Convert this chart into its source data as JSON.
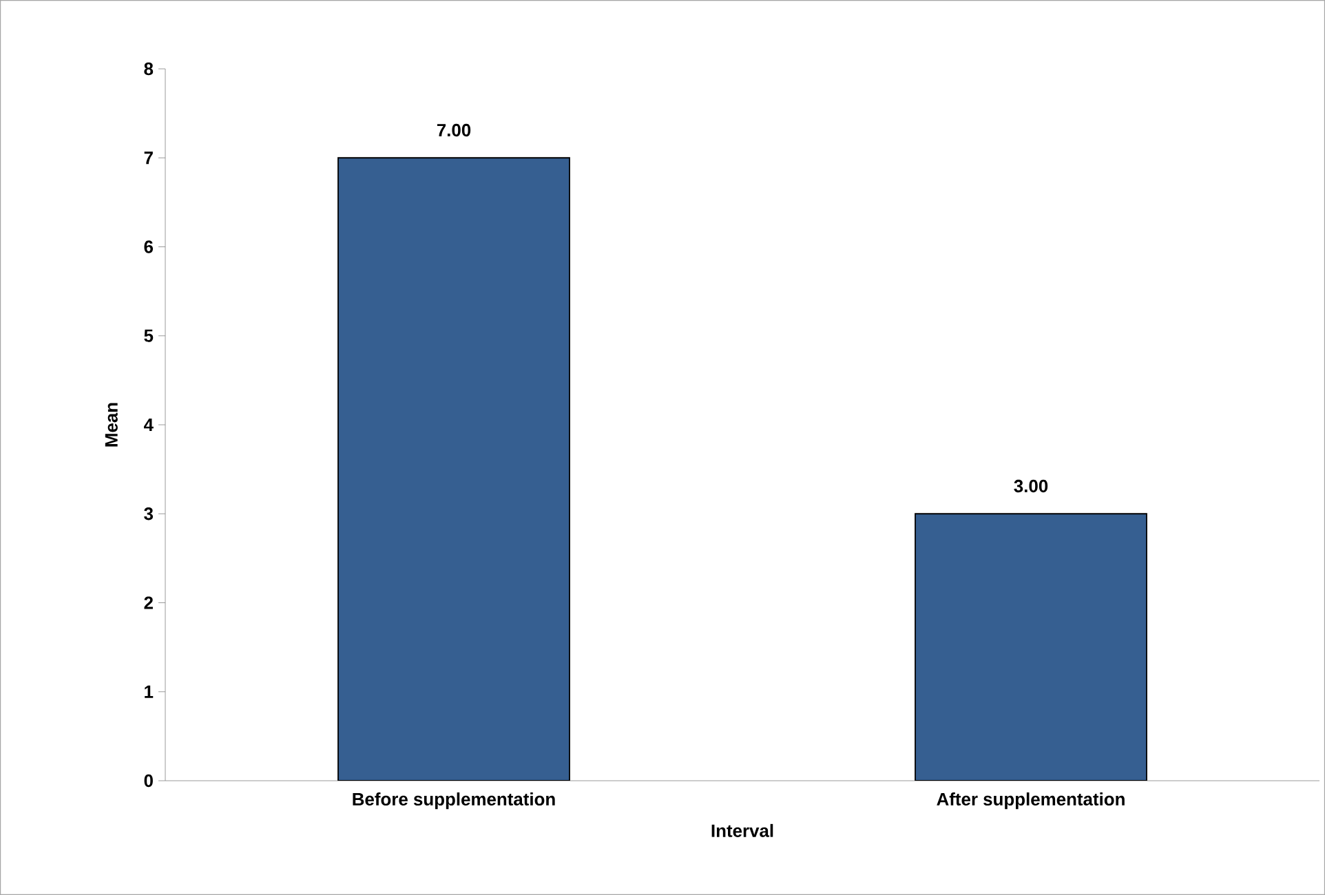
{
  "chart_data": {
    "type": "bar",
    "xlabel": "Interval",
    "ylabel": "Mean",
    "categories": [
      "Before supplementation",
      "After supplementation"
    ],
    "values": [
      7,
      3
    ],
    "value_labels": [
      "7.00",
      "3.00"
    ],
    "color": "#365f91",
    "ylim": [
      0,
      8
    ],
    "yticks": [
      0,
      1,
      2,
      3,
      4,
      5,
      6,
      7,
      8
    ],
    "grid": false
  }
}
